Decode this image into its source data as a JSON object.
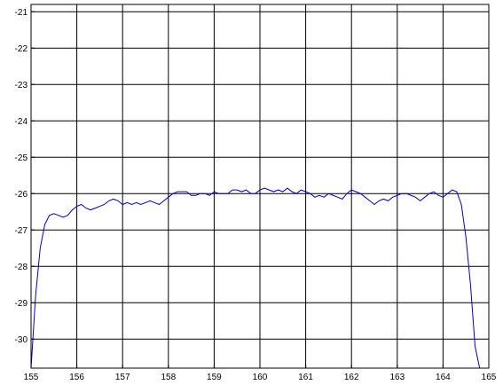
{
  "chart_data": {
    "type": "line",
    "title": "",
    "xlabel": "",
    "ylabel": "",
    "xlim": [
      155,
      165
    ],
    "ylim": [
      -30.8,
      -20.8
    ],
    "grid": true,
    "x_ticks": [
      155,
      156,
      157,
      158,
      159,
      160,
      161,
      162,
      163,
      164,
      165
    ],
    "x_tick_labels": [
      "155",
      "156",
      "157",
      "158",
      "159",
      "160",
      "161",
      "162",
      "163",
      "164",
      "165"
    ],
    "y_ticks": [
      -21,
      -22,
      -23,
      -24,
      -25,
      -26,
      -27,
      -28,
      -29,
      -30
    ],
    "y_tick_labels": [
      "-21",
      "-22",
      "-23",
      "-24",
      "-25",
      "-26",
      "-27",
      "-28",
      "-29",
      "-30"
    ],
    "series": [
      {
        "color": "#0000cc",
        "x": [
          155.0,
          155.1,
          155.2,
          155.3,
          155.4,
          155.5,
          155.6,
          155.7,
          155.8,
          155.9,
          156.0,
          156.1,
          156.2,
          156.3,
          156.4,
          156.5,
          156.6,
          156.7,
          156.8,
          156.9,
          157.0,
          157.1,
          157.2,
          157.3,
          157.4,
          157.5,
          157.6,
          157.7,
          157.8,
          157.9,
          158.0,
          158.1,
          158.2,
          158.3,
          158.4,
          158.5,
          158.6,
          158.7,
          158.8,
          158.9,
          159.0,
          159.1,
          159.2,
          159.3,
          159.4,
          159.5,
          159.6,
          159.7,
          159.8,
          159.9,
          160.0,
          160.1,
          160.2,
          160.3,
          160.4,
          160.5,
          160.6,
          160.7,
          160.8,
          160.9,
          161.0,
          161.1,
          161.2,
          161.3,
          161.4,
          161.5,
          161.6,
          161.7,
          161.8,
          161.9,
          162.0,
          162.1,
          162.2,
          162.3,
          162.4,
          162.5,
          162.6,
          162.7,
          162.8,
          162.9,
          163.0,
          163.1,
          163.2,
          163.3,
          163.4,
          163.5,
          163.6,
          163.7,
          163.8,
          163.9,
          164.0,
          164.1,
          164.2,
          164.3,
          164.4,
          164.5,
          164.6,
          164.7,
          164.8
        ],
        "y": [
          -30.8,
          -28.8,
          -27.5,
          -26.85,
          -26.6,
          -26.55,
          -26.6,
          -26.65,
          -26.6,
          -26.45,
          -26.35,
          -26.3,
          -26.4,
          -26.45,
          -26.4,
          -26.35,
          -26.3,
          -26.2,
          -26.15,
          -26.2,
          -26.3,
          -26.25,
          -26.3,
          -26.25,
          -26.3,
          -26.25,
          -26.2,
          -26.25,
          -26.3,
          -26.2,
          -26.1,
          -26.0,
          -25.95,
          -25.95,
          -25.95,
          -26.05,
          -26.05,
          -26.0,
          -26.0,
          -26.05,
          -25.95,
          -26.0,
          -26.0,
          -26.0,
          -25.9,
          -25.9,
          -25.95,
          -25.9,
          -26.0,
          -26.0,
          -25.9,
          -25.85,
          -25.9,
          -25.95,
          -25.9,
          -25.95,
          -25.85,
          -25.95,
          -26.0,
          -25.9,
          -25.95,
          -26.0,
          -26.1,
          -26.05,
          -26.1,
          -26.0,
          -26.05,
          -26.1,
          -26.15,
          -26.0,
          -25.9,
          -25.95,
          -26.0,
          -26.1,
          -26.2,
          -26.3,
          -26.2,
          -26.15,
          -26.2,
          -26.1,
          -26.05,
          -26.0,
          -26.0,
          -26.05,
          -26.1,
          -26.2,
          -26.1,
          -26.0,
          -25.95,
          -26.05,
          -26.1,
          -26.0,
          -25.9,
          -25.95,
          -26.3,
          -27.2,
          -28.5,
          -30.2,
          -30.8
        ]
      }
    ]
  }
}
